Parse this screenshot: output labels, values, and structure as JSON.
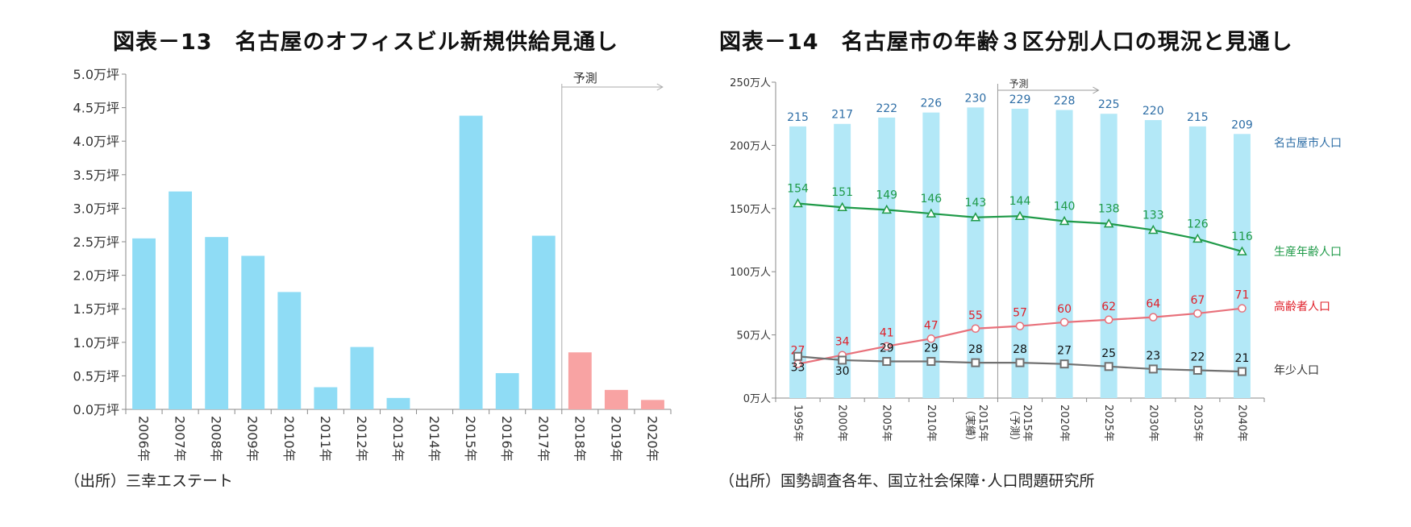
{
  "chart1": {
    "title": "図表－13　名古屋のオフィスビル新規供給見通し",
    "source": "（出所）三幸エステート",
    "forecast_label": "予測",
    "chart_data": {
      "type": "bar",
      "categories": [
        "2006年",
        "2007年",
        "2008年",
        "2009年",
        "2010年",
        "2011年",
        "2012年",
        "2013年",
        "2014年",
        "2015年",
        "2016年",
        "2017年",
        "2018年",
        "2019年",
        "2020年"
      ],
      "values": [
        2.55,
        3.25,
        2.57,
        2.29,
        1.75,
        0.33,
        0.93,
        0.17,
        0.0,
        4.38,
        0.54,
        2.59,
        0.85,
        0.29,
        0.14
      ],
      "forecast_from_index": 12,
      "y_ticks": [
        "0.0万坪",
        "0.5万坪",
        "1.0万坪",
        "1.5万坪",
        "2.0万坪",
        "2.5万坪",
        "3.0万坪",
        "3.5万坪",
        "4.0万坪",
        "4.5万坪",
        "5.0万坪"
      ],
      "ylim": [
        0,
        5.0
      ],
      "grid": false,
      "colors": {
        "actual": "#8fdcf5",
        "forecast": "#f8a3a3"
      }
    }
  },
  "chart2": {
    "title": "図表－14　名古屋市の年齢３区分別人口の現況と見通し",
    "source": "（出所）国勢調査各年、国立社会保障･人口問題研究所",
    "forecast_label": "予測",
    "chart_data": {
      "type": "bar+line",
      "categories": [
        "1995年",
        "2000年",
        "2005年",
        "2010年",
        "2015年（実績）",
        "2015年（予測）",
        "2020年",
        "2025年",
        "2030年",
        "2035年",
        "2040年"
      ],
      "y_ticks": [
        "0万人",
        "50万人",
        "100万人",
        "150万人",
        "200万人",
        "250万人"
      ],
      "ylim": [
        0,
        250
      ],
      "grid": false,
      "series": [
        {
          "name": "名古屋市人口",
          "kind": "bar",
          "color": "#b3e8f7",
          "label_color": "#2e6ea6",
          "values": [
            215,
            217,
            222,
            226,
            230,
            229,
            228,
            225,
            220,
            215,
            209
          ]
        },
        {
          "name": "生産年齢人口",
          "kind": "line",
          "marker": "triangle",
          "color": "#1f9a48",
          "values": [
            154,
            151,
            149,
            146,
            143,
            144,
            140,
            138,
            133,
            126,
            116
          ]
        },
        {
          "name": "高齢者人口",
          "kind": "line",
          "marker": "circle",
          "color": "#e8707a",
          "label_color": "#e0202a",
          "values": [
            27,
            34,
            41,
            47,
            55,
            57,
            60,
            62,
            64,
            67,
            71
          ]
        },
        {
          "name": "年少人口",
          "kind": "line",
          "marker": "square",
          "color": "#707070",
          "label_color": "#111111",
          "values": [
            33,
            30,
            29,
            29,
            28,
            28,
            27,
            25,
            23,
            22,
            21
          ]
        }
      ]
    }
  }
}
